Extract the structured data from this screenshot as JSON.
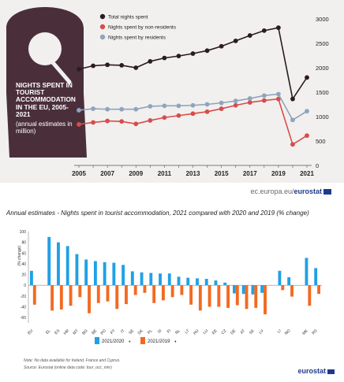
{
  "top_chart": {
    "hanger_title": "NIGHTS SPENT IN TOURIST ACCOMMODATION IN THE EU, 2005-2021",
    "hanger_subtitle": "(annual estimates in million)",
    "source_link_prefix": "ec.europa.eu/",
    "source_link_bold": "eurostat"
  },
  "bar_chart": {
    "title": "Annual estimates - Nights spent in tourist accommodation, 2021 compared with 2020 and 2019 (% change)",
    "note": "Note: No data available for Ireland, France and Cyprus.",
    "source": "Source: Eurostat (online data code: tour_occ_ninr)",
    "brand": "eurostat"
  },
  "chart_data": [
    {
      "type": "line",
      "title": "NIGHTS SPENT IN TOURIST ACCOMMODATION IN THE EU, 2005-2021",
      "ylabel": "",
      "xlabel": "",
      "ylim": [
        0,
        3000
      ],
      "yticks": [
        0,
        500,
        1000,
        1500,
        2000,
        2500,
        3000
      ],
      "x": [
        2005,
        2006,
        2007,
        2008,
        2009,
        2010,
        2011,
        2012,
        2013,
        2014,
        2015,
        2016,
        2017,
        2018,
        2019,
        2020,
        2021
      ],
      "xtick_labels": [
        "2005",
        "2007",
        "2009",
        "2011",
        "2013",
        "2015",
        "2017",
        "2019",
        "2021"
      ],
      "legend_position": "top-left",
      "grid": false,
      "series": [
        {
          "name": "Total nights spent",
          "color": "#2b1b22",
          "values": [
            1970,
            2040,
            2060,
            2050,
            2000,
            2130,
            2200,
            2240,
            2290,
            2350,
            2440,
            2550,
            2660,
            2760,
            2820,
            1360,
            1800
          ]
        },
        {
          "name": "Nights spent by non-residents",
          "color": "#d84c4c",
          "values": [
            840,
            880,
            910,
            900,
            850,
            920,
            980,
            1020,
            1060,
            1100,
            1160,
            1230,
            1290,
            1330,
            1360,
            430,
            610
          ]
        },
        {
          "name": "Nights spent by residents",
          "color": "#8fa4bd",
          "values": [
            1130,
            1160,
            1150,
            1150,
            1150,
            1210,
            1220,
            1220,
            1230,
            1250,
            1280,
            1320,
            1370,
            1430,
            1460,
            930,
            1110
          ]
        }
      ]
    },
    {
      "type": "bar",
      "title": "Annual estimates - Nights spent in tourist accommodation, 2021 compared with 2020 and 2019 (% change)",
      "ylabel": "(% change)",
      "ylim": [
        -70,
        100
      ],
      "yticks": [
        -60,
        -40,
        -20,
        0,
        20,
        40,
        60,
        80,
        100
      ],
      "legend_position": "bottom-center",
      "grid": false,
      "categories": [
        "EU",
        "EL",
        "ES",
        "HR",
        "MT",
        "BG",
        "BE",
        "PO",
        "PT",
        "IT",
        "SE",
        "DK",
        "PL",
        "SI",
        "FI",
        "NL",
        "LT",
        "HU",
        "LU",
        "EE",
        "CZ",
        "DE",
        "AT",
        "SK",
        "LV",
        "LI",
        "NO",
        "MK",
        "RS"
      ],
      "gap_after": [
        "EU",
        "LV",
        "NO"
      ],
      "series": [
        {
          "name": "2021/2020",
          "color": "#1fa1e5",
          "values": [
            27,
            90,
            80,
            73,
            58,
            48,
            45,
            43,
            42,
            38,
            26,
            24,
            23,
            22,
            22,
            16,
            14,
            13,
            12,
            9,
            5,
            -15,
            -16,
            -17,
            -14,
            27,
            15,
            51,
            32
          ]
        },
        {
          "name": "2021/2019",
          "color": "#f26a21",
          "values": [
            -36,
            -47,
            -45,
            -38,
            -22,
            -52,
            -33,
            -30,
            -44,
            -35,
            -18,
            -14,
            -33,
            -28,
            -22,
            -18,
            -36,
            -47,
            -40,
            -40,
            -42,
            -37,
            -44,
            -42,
            -54,
            -9,
            -21,
            -38,
            -16
          ]
        }
      ]
    }
  ]
}
